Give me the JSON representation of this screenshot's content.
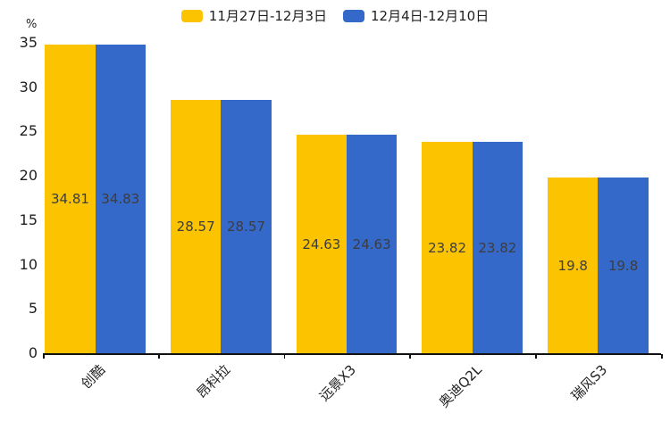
{
  "chart_data": {
    "type": "bar",
    "title": "",
    "categories": [
      "创酷",
      "昂科拉",
      "远景X3",
      "奥迪Q2L",
      "瑞风S3"
    ],
    "series": [
      {
        "name": "11月27日-12月3日",
        "color": "#FCC400",
        "values": [
          34.81,
          28.57,
          24.63,
          23.82,
          19.8
        ]
      },
      {
        "name": "12月4日-12月10日",
        "color": "#3468C9",
        "values": [
          34.83,
          28.57,
          24.63,
          23.82,
          19.8
        ]
      }
    ],
    "bar_value_labels": [
      [
        "34.81",
        "34.83"
      ],
      [
        "28.57",
        "28.57"
      ],
      [
        "24.63",
        "24.63"
      ],
      [
        "23.82",
        "23.82"
      ],
      [
        "19.8",
        "19.8"
      ]
    ],
    "ylabel": "%",
    "xlabel": "",
    "ylim": [
      0,
      35
    ],
    "yticks": [
      "0",
      "5",
      "10",
      "15",
      "20",
      "25",
      "30",
      "35"
    ],
    "grid": false,
    "legend_position": "top-center",
    "background_color": "#ffffff",
    "axis_color": "#111111",
    "bar_label_color": "#3d3d3d"
  }
}
